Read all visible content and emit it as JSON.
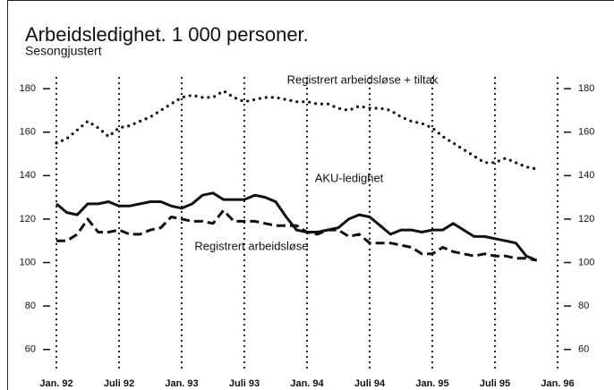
{
  "chart_data": {
    "type": "line",
    "title": "Arbeidsledighet. 1 000 personer.",
    "subtitle": "Sesongjustert",
    "categories": [
      "Jan. 92",
      null,
      null,
      null,
      null,
      null,
      "Juli 92",
      null,
      null,
      null,
      null,
      null,
      "Jan. 93",
      null,
      null,
      null,
      null,
      null,
      "Juli 93",
      null,
      null,
      null,
      null,
      null,
      "Jan. 94",
      null,
      null,
      null,
      null,
      null,
      "Juli 94",
      null,
      null,
      null,
      null,
      null,
      "Jan. 95",
      null,
      null,
      null,
      null,
      null,
      "Juli 95",
      null,
      null,
      null,
      null,
      null,
      "Jan. 96"
    ],
    "series": [
      {
        "name": "Registrert arbeidsløse + tiltak",
        "color": "#111111",
        "style": "dotted",
        "values": [
          155,
          157,
          161,
          165,
          162,
          158,
          162,
          163,
          165,
          167,
          170,
          173,
          176,
          177,
          176,
          176,
          179,
          176,
          174,
          175,
          176,
          176,
          175,
          174,
          174,
          173,
          173,
          171,
          170,
          172,
          171,
          171,
          170,
          167,
          165,
          164,
          162,
          158,
          155,
          152,
          149,
          146,
          146,
          148,
          146,
          144,
          143,
          null,
          null
        ]
      },
      {
        "name": "AKU-ledighet",
        "color": "#111111",
        "style": "solid",
        "values": [
          127,
          123,
          122,
          127,
          127,
          128,
          126,
          126,
          127,
          128,
          128,
          126,
          125,
          127,
          131,
          132,
          129,
          129,
          129,
          131,
          130,
          128,
          121,
          115,
          114,
          114,
          115,
          116,
          120,
          122,
          121,
          117,
          113,
          115,
          115,
          114,
          115,
          115,
          118,
          115,
          112,
          112,
          111,
          110,
          109,
          103,
          101,
          null,
          null
        ]
      },
      {
        "name": "Registrert arbeidsløse",
        "color": "#111111",
        "style": "dashed",
        "values": [
          110,
          110,
          113,
          120,
          114,
          114,
          115,
          113,
          113,
          115,
          116,
          121,
          120,
          119,
          119,
          118,
          124,
          119,
          119,
          119,
          118,
          117,
          117,
          117,
          114,
          113,
          115,
          115,
          112,
          113,
          109,
          109,
          109,
          108,
          107,
          104,
          104,
          107,
          105,
          104,
          103,
          104,
          103,
          103,
          102,
          102,
          101,
          null,
          null
        ]
      }
    ],
    "ylim": [
      50,
      185
    ],
    "yticks": [
      60,
      80,
      100,
      120,
      140,
      160,
      180
    ],
    "grid": true
  }
}
